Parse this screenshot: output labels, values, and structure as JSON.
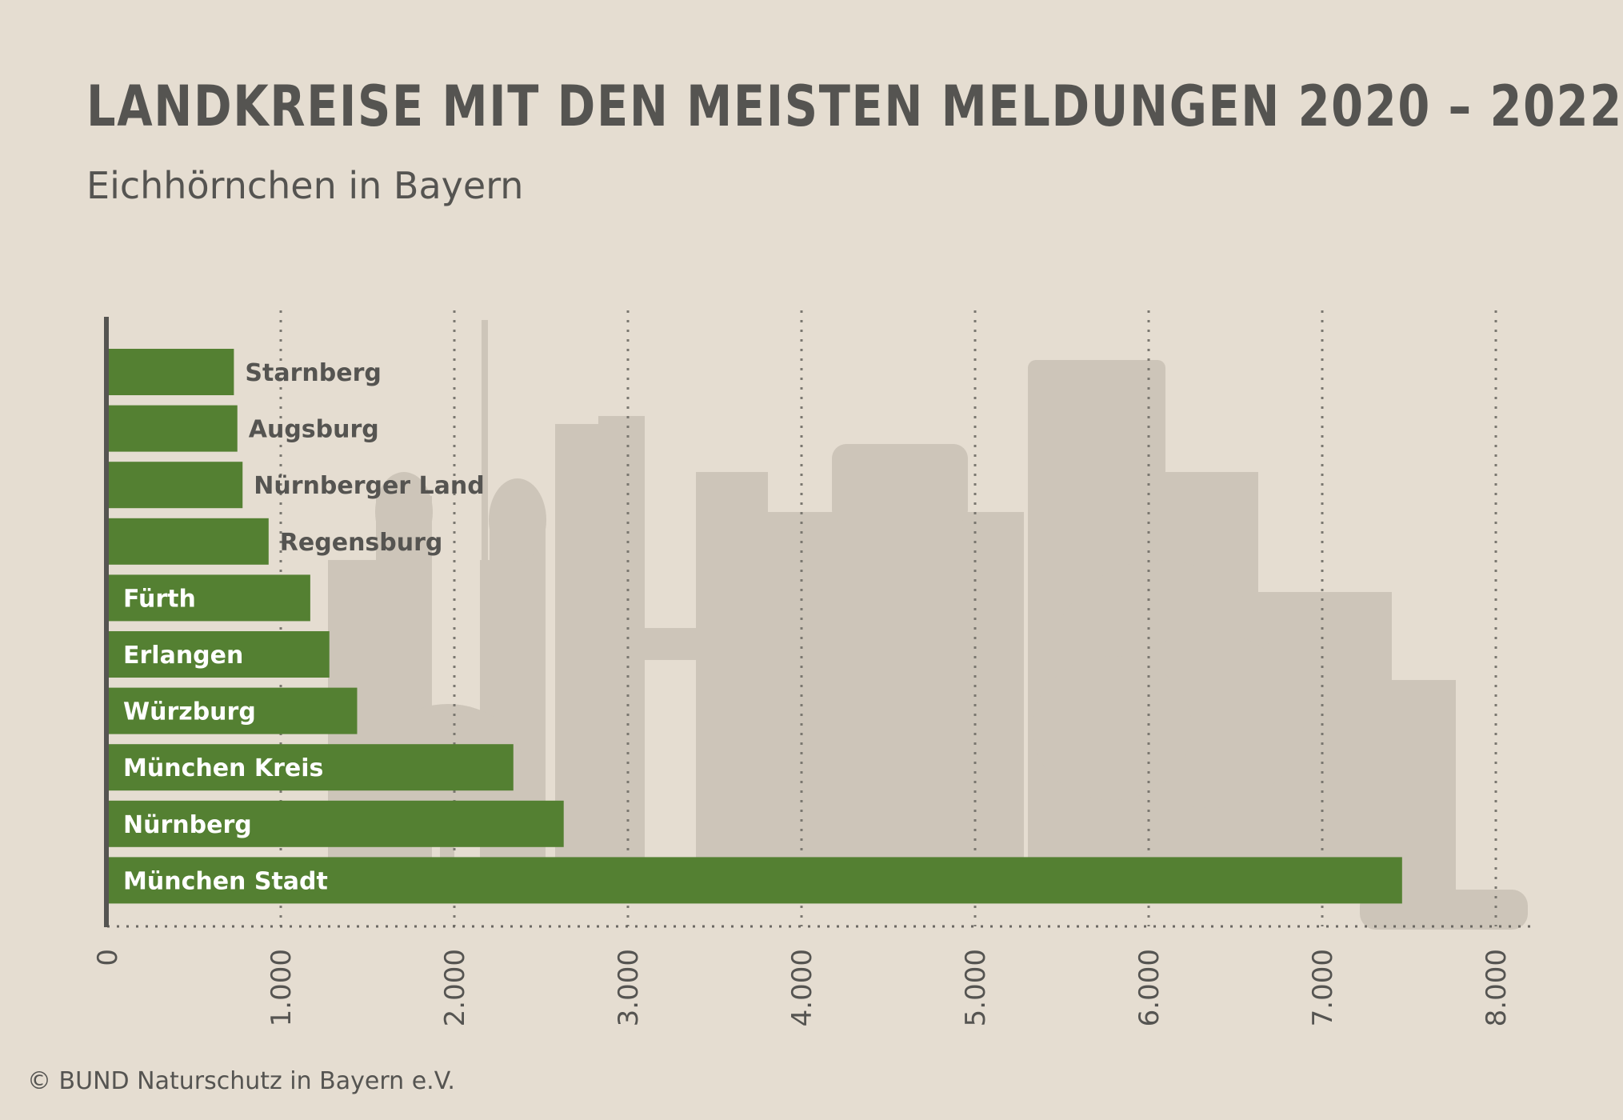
{
  "title": "LANDKREISE MIT DEN MEISTEN MELDUNGEN 2020 – 2022",
  "subtitle": "Eichhörnchen in Bayern",
  "credit": "© BUND Naturschutz in Bayern e.V.",
  "colors": {
    "background": "#e5ddd1",
    "bar": "#548032",
    "text": "#555451",
    "skyline": "#c9c1b5"
  },
  "chart_data": {
    "type": "bar",
    "orientation": "horizontal",
    "title": "LANDKREISE MIT DEN MEISTEN MELDUNGEN 2020 – 2022",
    "subtitle": "Eichhörnchen in Bayern",
    "categories": [
      "Starnberg",
      "Augsburg",
      "Nürnberger Land",
      "Regensburg",
      "Fürth",
      "Erlangen",
      "Würzburg",
      "München Kreis",
      "Nürnberg",
      "München Stadt"
    ],
    "values": [
      730,
      750,
      780,
      930,
      1170,
      1280,
      1440,
      2340,
      2630,
      7460
    ],
    "xlim": [
      0,
      8000
    ],
    "x_ticks": [
      0,
      1000,
      2000,
      3000,
      4000,
      5000,
      6000,
      7000,
      8000
    ],
    "x_tick_labels": [
      "0",
      "1.000",
      "2.000",
      "3.000",
      "4.000",
      "5.000",
      "6.000",
      "7.000",
      "8.000"
    ],
    "grid": "vertical dotted",
    "xlabel": "",
    "ylabel": ""
  }
}
